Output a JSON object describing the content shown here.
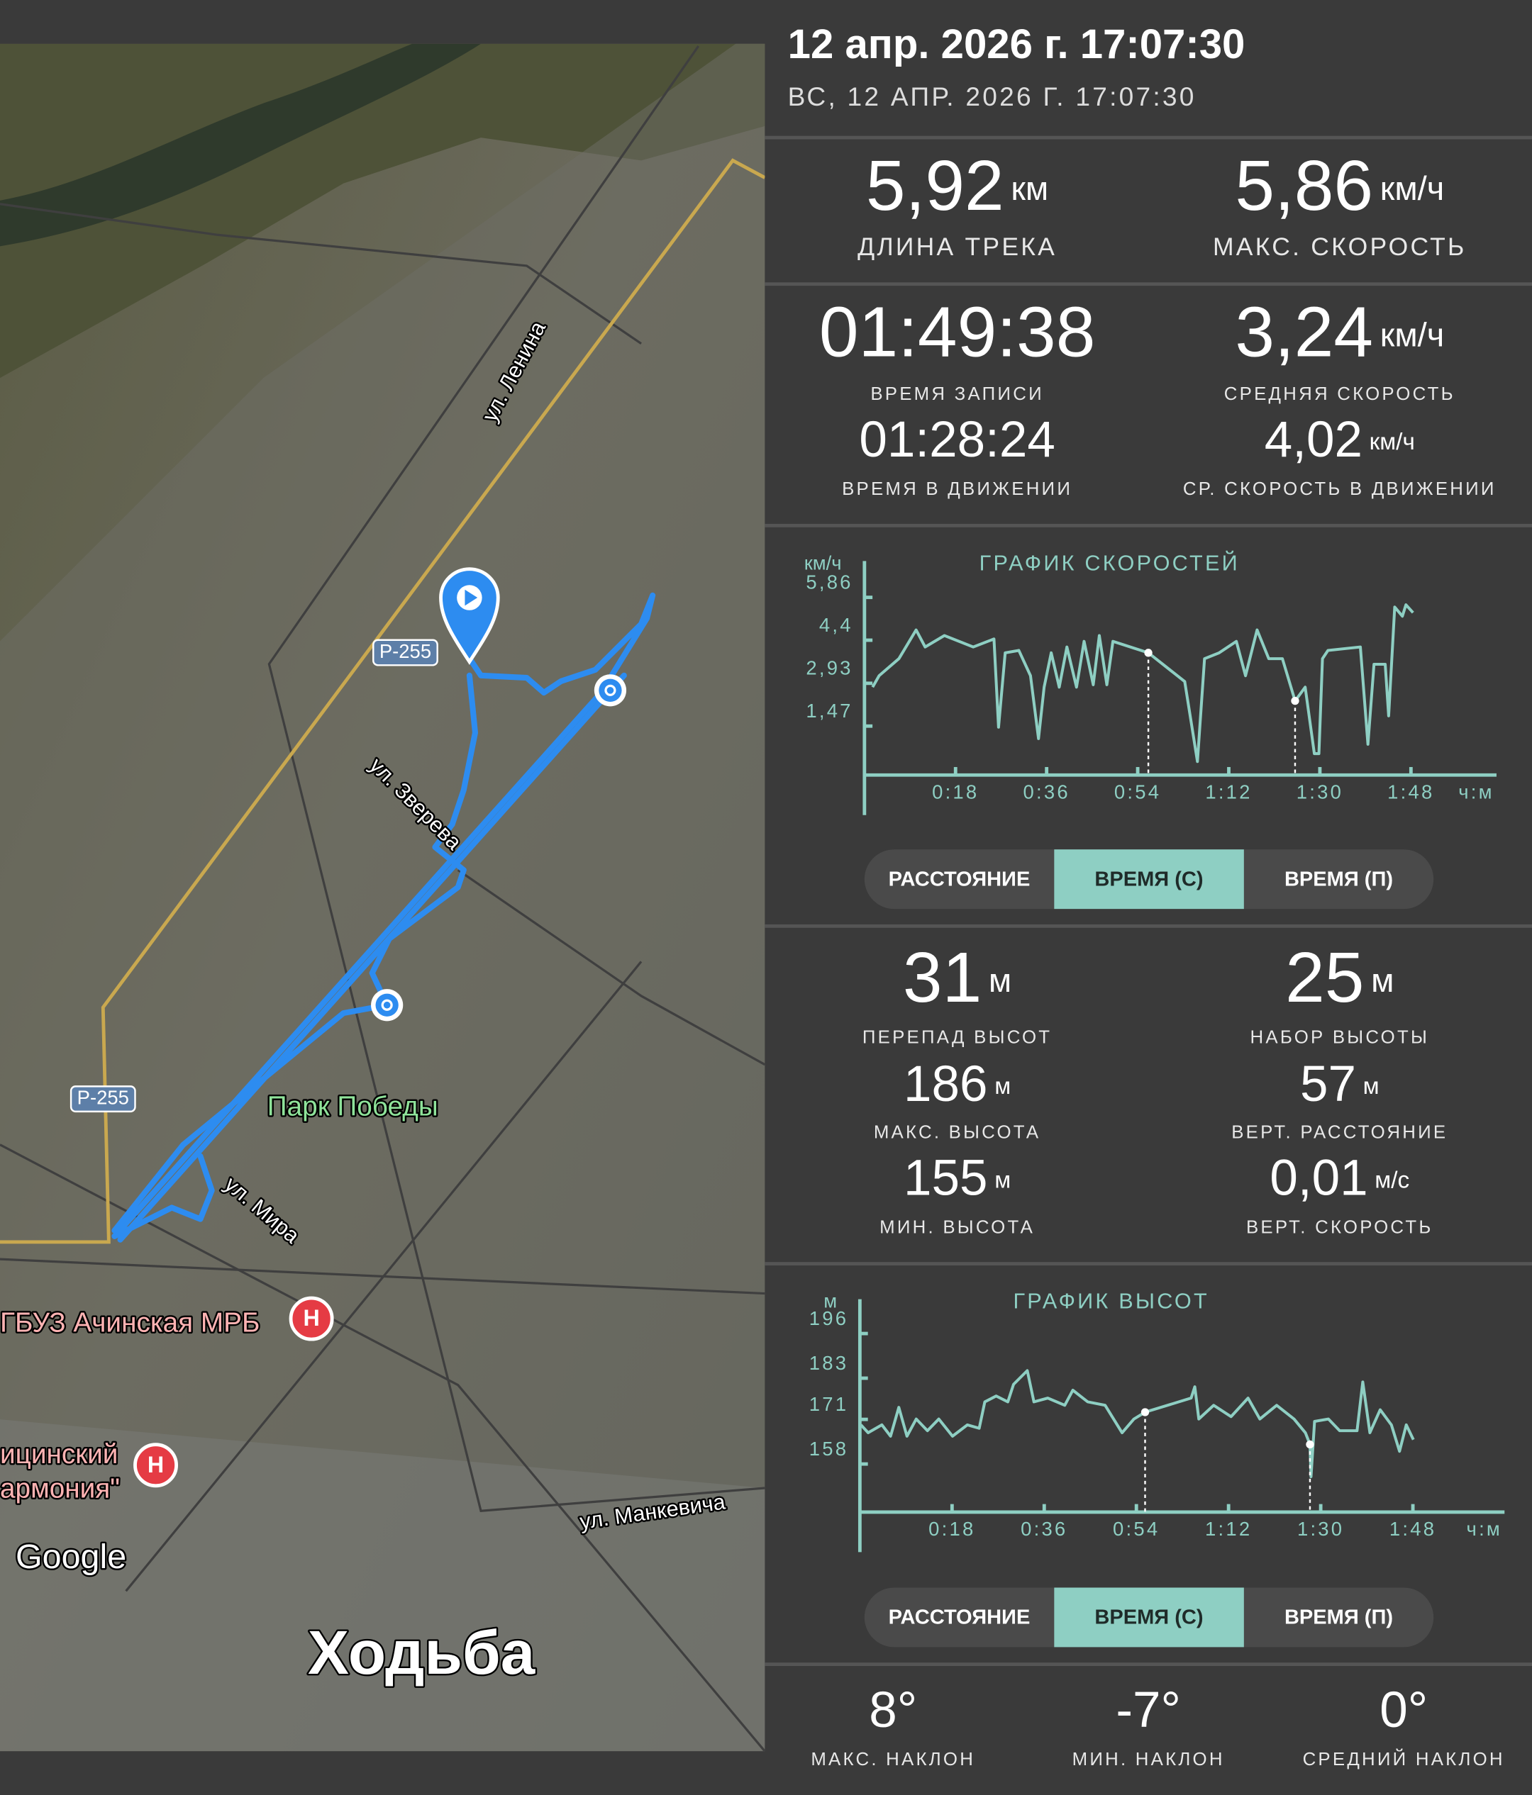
{
  "header": {
    "title": "12 апр. 2026 г. 17:07:30",
    "subtitle": "ВС, 12 АПР. 2026 Г. 17:07:30"
  },
  "map": {
    "labels": [
      "ул. Ленина",
      "Р-255",
      "ул. Зверева",
      "Р-255",
      "Парк Победы",
      "ул. Мира",
      "ГБУЗ Ачинская МРБ",
      "ицинский",
      "армония\"",
      "ул. Манкевича"
    ],
    "hospital_icon": "H",
    "attribution": "Google",
    "activity": "Ходьба"
  },
  "stats": [
    {
      "value": "5,92",
      "unit": "км",
      "label": "ДЛИНА ТРЕКА"
    },
    {
      "value": "5,86",
      "unit": "км/ч",
      "label": "МАКС. СКОРОСТЬ"
    },
    {
      "value": "01:49:38",
      "label": "ВРЕМЯ ЗАПИСИ"
    },
    {
      "value": "3,24",
      "unit": "км/ч",
      "label": "СРЕДНЯЯ СКОРОСТЬ"
    },
    {
      "value": "01:28:24",
      "label": "ВРЕМЯ В ДВИЖЕНИИ"
    },
    {
      "value": "4,02",
      "unit": "км/ч",
      "label": "СР. СКОРОСТЬ В ДВИЖЕНИИ"
    }
  ],
  "elevation_stats": [
    {
      "value": "31",
      "unit": "м",
      "label": "ПЕРЕПАД ВЫСОТ"
    },
    {
      "value": "25",
      "unit": "м",
      "label": "НАБОР ВЫСОТЫ"
    },
    {
      "value": "186",
      "unit": "м",
      "label": "МАКС. ВЫСОТА"
    },
    {
      "value": "57",
      "unit": "м",
      "label": "ВЕРТ. РАССТОЯНИЕ"
    },
    {
      "value": "155",
      "unit": "м",
      "label": "МИН. ВЫСОТА"
    },
    {
      "value": "0,01",
      "unit": "м/с",
      "label": "ВЕРТ. СКОРОСТЬ"
    }
  ],
  "chart_data": [
    {
      "type": "line",
      "title": "ГРАФИК СКОРОСТЕЙ",
      "y_label": "км/ч",
      "x_label": "ч:м",
      "color": "#8ecfc3",
      "x": [
        1.6,
        2.9,
        6.8,
        10.2,
        12.0,
        15.8,
        21.5,
        25.6,
        26.5,
        27.8,
        30.5,
        32.8,
        34.4,
        35.5,
        36.9,
        38.5,
        40.0,
        41.9,
        43.4,
        45.2,
        46.4,
        47.9,
        49.1,
        56.1,
        63.3,
        65.8,
        67.2,
        70.1,
        73.5,
        75.3,
        77.6,
        79.9,
        82.6,
        85.1,
        87.1,
        88.9,
        89.8,
        90.5,
        91.6,
        98.0,
        99.5,
        100.7,
        102.9,
        103.6,
        104.8,
        106.3,
        107.0,
        108.4
      ],
      "values": [
        2.8,
        3.19,
        3.77,
        4.75,
        4.17,
        4.56,
        4.17,
        4.44,
        1.43,
        3.97,
        4.05,
        3.19,
        1.04,
        2.8,
        3.97,
        2.8,
        4.17,
        2.8,
        4.36,
        2.88,
        4.56,
        2.88,
        4.36,
        3.97,
        2.99,
        0.26,
        3.77,
        3.97,
        4.36,
        3.19,
        4.75,
        3.77,
        3.77,
        2.33,
        2.8,
        0.53,
        0.53,
        3.77,
        4.05,
        4.17,
        0.85,
        3.58,
        3.58,
        1.82,
        5.53,
        5.22,
        5.61,
        5.34
      ],
      "highlight_x": [
        56.1,
        85.1
      ],
      "xlim": [
        0,
        124
      ],
      "ylim": [
        -0.2,
        7.1
      ],
      "xticks": [
        {
          "value": 18,
          "label": "0:18"
        },
        {
          "value": 36,
          "label": "0:36"
        },
        {
          "value": 54,
          "label": "0:54"
        },
        {
          "value": 72,
          "label": "1:12"
        },
        {
          "value": 90,
          "label": "1:30"
        },
        {
          "value": 108,
          "label": "1:48"
        }
      ],
      "yticks": [
        {
          "value": 1.47,
          "label": "1,47"
        },
        {
          "value": 2.93,
          "label": "2,93"
        },
        {
          "value": 4.4,
          "label": "4,4"
        },
        {
          "value": 5.86,
          "label": "5,86"
        }
      ]
    },
    {
      "type": "line",
      "title": "ГРАФИК ВЫСОТ",
      "y_label": "м",
      "x_label": "ч:м",
      "color": "#8ecfc3",
      "x": [
        0.2,
        1.6,
        4.3,
        6.0,
        7.6,
        9.2,
        11.0,
        13.2,
        15.4,
        18.1,
        21.0,
        23.3,
        24.4,
        26.6,
        28.9,
        30.0,
        32.7,
        34.0,
        36.7,
        40.0,
        41.6,
        44.5,
        47.9,
        51.2,
        53.5,
        55.7,
        64.7,
        65.4,
        66.2,
        69.1,
        72.5,
        75.8,
        78.1,
        81.4,
        84.8,
        87.0,
        87.9,
        88.1,
        88.8,
        91.5,
        93.7,
        97.1,
        98.2,
        99.6,
        101.6,
        103.8,
        105.4,
        106.7,
        108.1
      ],
      "values": [
        169.4,
        167.1,
        169.4,
        166.1,
        174.5,
        166.1,
        171.1,
        167.7,
        171.1,
        166.1,
        169.4,
        168.4,
        176.1,
        177.8,
        176.1,
        181.2,
        185.2,
        176.1,
        177.2,
        175.1,
        179.5,
        176.1,
        175.1,
        167.1,
        171.1,
        173.1,
        177.2,
        180.5,
        171.1,
        175.1,
        171.8,
        177.2,
        171.1,
        175.1,
        171.1,
        167.1,
        163.7,
        154.3,
        170.4,
        171.1,
        167.7,
        167.7,
        181.9,
        167.1,
        173.8,
        169.4,
        161.7,
        169.4,
        165.1
      ],
      "highlight_x": [
        55.7,
        87.9
      ],
      "xlim": [
        0,
        125
      ],
      "ylim": [
        144,
        206
      ],
      "xticks": [
        {
          "value": 18,
          "label": "0:18"
        },
        {
          "value": 36,
          "label": "0:36"
        },
        {
          "value": 54,
          "label": "0:54"
        },
        {
          "value": 72,
          "label": "1:12"
        },
        {
          "value": 90,
          "label": "1:30"
        },
        {
          "value": 108,
          "label": "1:48"
        }
      ],
      "yticks": [
        158,
        171,
        183,
        196
      ]
    }
  ],
  "toggles": [
    {
      "options": [
        "РАССТОЯНИЕ",
        "ВРЕМЯ (С)",
        "ВРЕМЯ (П)"
      ],
      "selected": 1
    },
    {
      "options": [
        "РАССТОЯНИЕ",
        "ВРЕМЯ (С)",
        "ВРЕМЯ (П)"
      ],
      "selected": 1
    }
  ],
  "slopes": [
    {
      "value": "8°",
      "label": "МАКС. НАКЛОН"
    },
    {
      "value": "-7°",
      "label": "МИН. НАКЛОН"
    },
    {
      "value": "0°",
      "label": "СРЕДНИЙ НАКЛОН"
    }
  ]
}
